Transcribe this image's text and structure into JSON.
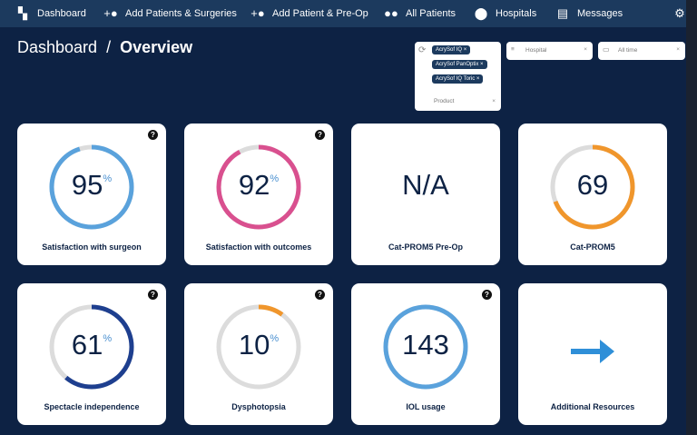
{
  "nav": [
    {
      "label": "Dashboard",
      "icon": "dashboard-icon"
    },
    {
      "label": "Add Patients & Surgeries",
      "icon": "add-person-icon"
    },
    {
      "label": "Add Patient & Pre-Op",
      "icon": "add-person-icon"
    },
    {
      "label": "All Patients",
      "icon": "people-icon"
    },
    {
      "label": "Hospitals",
      "icon": "location-pin-icon"
    },
    {
      "label": "Messages",
      "icon": "message-icon"
    }
  ],
  "header": {
    "crumb": "Dashboard",
    "sep": "/",
    "title": "Overview"
  },
  "filters": {
    "product": {
      "chips": [
        "AcrySof IQ",
        "AcrySof PanOptix",
        "AcrySof IQ Toric"
      ],
      "placeholder": "Product"
    },
    "hospital": {
      "placeholder": "Hospital"
    },
    "date": {
      "value": "All time"
    }
  },
  "cards": [
    {
      "value": "95",
      "unit": "%",
      "label": "Satisfaction with surgeon",
      "percent": 95,
      "color": "#5aa2dc",
      "help": true
    },
    {
      "value": "92",
      "unit": "%",
      "label": "Satisfaction with outcomes",
      "percent": 92,
      "color": "#d9508f",
      "help": true
    },
    {
      "value": "N/A",
      "unit": "",
      "label": "Cat-PROM5 Pre-Op",
      "percent": null,
      "color": "",
      "help": false
    },
    {
      "value": "69",
      "unit": "",
      "label": "Cat-PROM5",
      "percent": 69,
      "color": "#f0962c",
      "help": false
    },
    {
      "value": "61",
      "unit": "%",
      "label": "Spectacle independence",
      "percent": 61,
      "color": "#1e3f8f",
      "help": true
    },
    {
      "value": "10",
      "unit": "%",
      "label": "Dysphotopsia",
      "percent": 10,
      "color": "#f0962c",
      "help": true
    },
    {
      "value": "143",
      "unit": "",
      "label": "IOL usage",
      "percent": 100,
      "color": "#5aa2dc",
      "help": true
    },
    {
      "value": "",
      "unit": "",
      "label": "Additional Resources",
      "percent": null,
      "color": "#2f8fd8",
      "help": false,
      "icon": "arrow-right-icon"
    }
  ],
  "help_glyph": "?",
  "close_glyph": "×"
}
